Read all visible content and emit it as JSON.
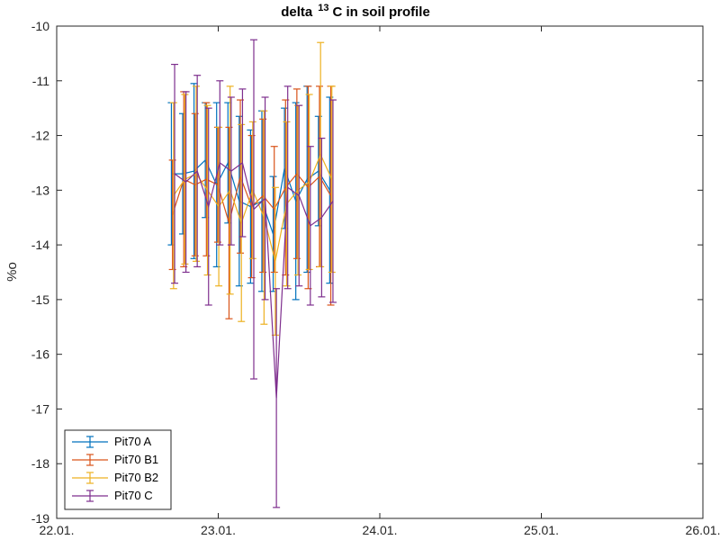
{
  "chart_data": {
    "type": "line",
    "title": {
      "prefix": "delta",
      "superscript": "13",
      "suffix": "C  in soil profile"
    },
    "xlabel": "",
    "ylabel": "%o",
    "x_ticks": [
      "22.01.",
      "23.01.",
      "24.01.",
      "25.01.",
      "26.01."
    ],
    "x_tick_values": [
      22,
      23,
      24,
      25,
      26
    ],
    "xlim": [
      22,
      26
    ],
    "y_ticks": [
      "-10",
      "-11",
      "-12",
      "-13",
      "-14",
      "-15",
      "-16",
      "-17",
      "-18",
      "-19"
    ],
    "y_tick_values": [
      -10,
      -11,
      -12,
      -13,
      -14,
      -15,
      -16,
      -17,
      -18,
      -19
    ],
    "ylim": [
      -19,
      -10
    ],
    "grid": false,
    "legend_position": "bottom-left",
    "x": [
      22.72,
      22.79,
      22.86,
      22.93,
      23.0,
      23.07,
      23.14,
      23.21,
      23.28,
      23.35,
      23.42,
      23.49,
      23.56,
      23.63,
      23.7
    ],
    "series": [
      {
        "name": "Pit70 A",
        "color": "#0072BD",
        "values": [
          -12.7,
          -12.7,
          -12.65,
          -12.45,
          -12.9,
          -12.5,
          -13.2,
          -13.3,
          -13.2,
          -13.8,
          -12.6,
          -13.2,
          -12.8,
          -12.65,
          -13.0
        ],
        "errors": [
          1.3,
          1.1,
          1.6,
          1.05,
          1.5,
          1.1,
          1.55,
          1.4,
          1.65,
          1.05,
          1.1,
          1.8,
          1.7,
          1.0,
          1.7
        ]
      },
      {
        "name": "Pit70 B1",
        "color": "#D95319",
        "values": [
          -13.45,
          -12.8,
          -12.9,
          -12.8,
          -12.9,
          -13.6,
          -12.75,
          -13.3,
          -13.1,
          -13.35,
          -12.95,
          -12.7,
          -12.95,
          -12.75,
          -13.1
        ],
        "errors": [
          1.0,
          1.6,
          1.3,
          1.4,
          1.05,
          1.75,
          1.4,
          1.3,
          1.4,
          1.15,
          1.6,
          1.55,
          1.85,
          1.65,
          2.0
        ]
      },
      {
        "name": "Pit70 B2",
        "color": "#EDB120",
        "values": [
          -13.1,
          -12.8,
          -12.7,
          -13.0,
          -13.3,
          -13.0,
          -13.6,
          -13.0,
          -13.5,
          -14.3,
          -13.25,
          -13.0,
          -12.85,
          -12.35,
          -12.8
        ],
        "errors": [
          1.7,
          1.55,
          1.6,
          1.55,
          1.45,
          1.9,
          1.8,
          1.25,
          1.95,
          1.35,
          1.5,
          1.55,
          1.6,
          2.05,
          1.7
        ]
      },
      {
        "name": "Pit70 C",
        "color": "#7E2F8E",
        "values": [
          -12.7,
          -12.85,
          -12.65,
          -13.3,
          -12.5,
          -12.65,
          -12.5,
          -13.35,
          -13.15,
          -16.8,
          -12.95,
          -13.1,
          -13.65,
          -13.5,
          -13.2
        ],
        "errors": [
          2.0,
          1.65,
          1.75,
          1.8,
          1.5,
          1.35,
          1.35,
          3.1,
          1.85,
          2.0,
          1.85,
          1.65,
          1.45,
          1.45,
          1.85
        ]
      }
    ]
  }
}
